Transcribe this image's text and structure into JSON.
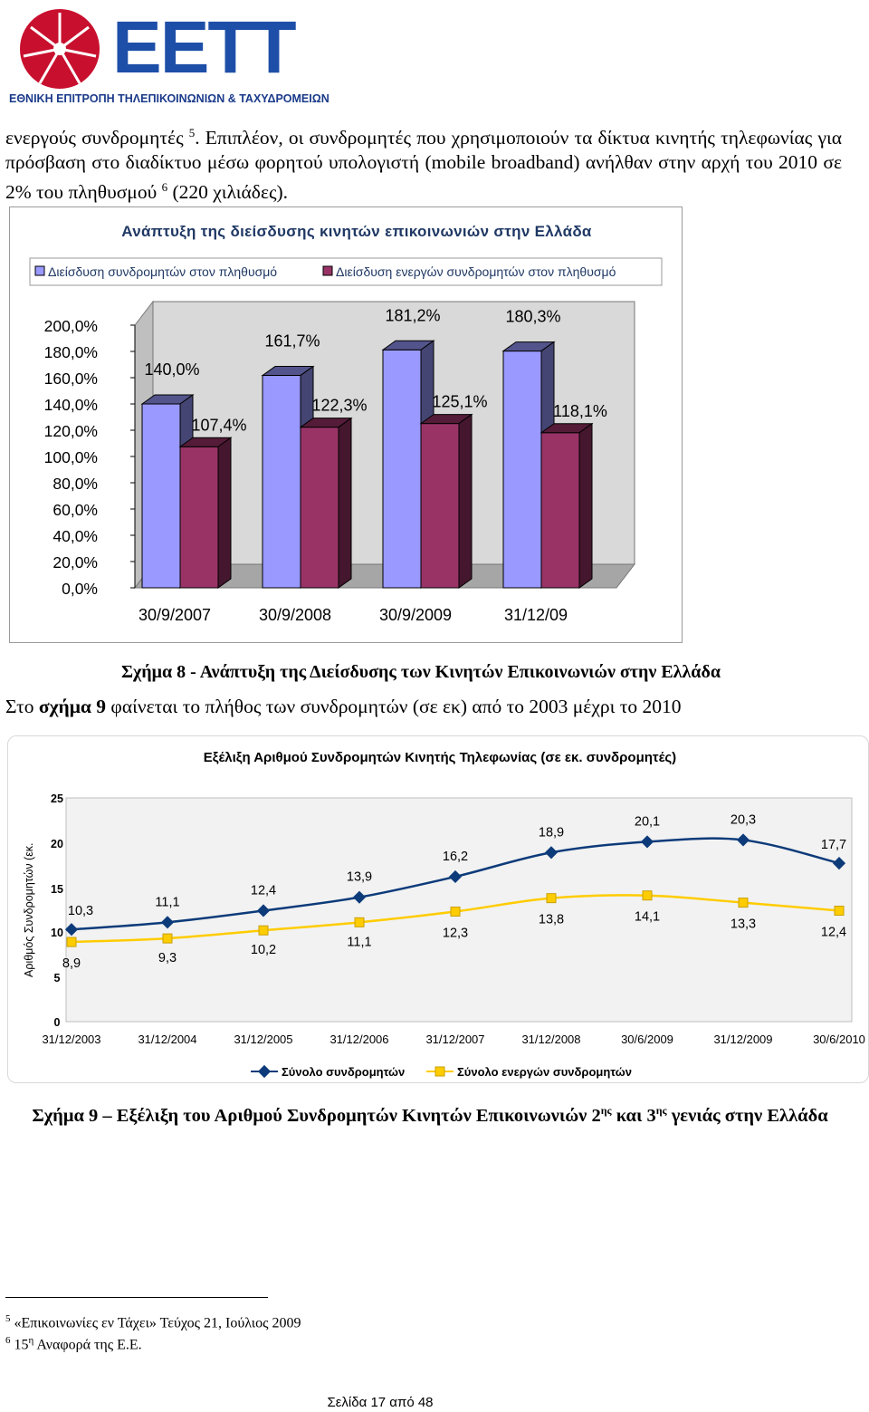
{
  "header": {
    "logo_text": "ΕΕΤΤ",
    "org_name": "ΕΘΝΙΚΗ ΕΠΙΤΡΟΠΗ ΤΗΛΕΠΙΚΟΙΝΩΝΙΩΝ & ΤΑΧΥΔΡΟΜΕΙΩΝ",
    "brand_red": "#c8102e",
    "brand_blue": "#1e4fa8"
  },
  "intro": {
    "text_a": "ενεργούς συνδρομητές ",
    "fn_ref_a": "5",
    "text_b": ". Επιπλέον, οι συνδρομητές που χρησιμοποιούν τα δίκτυα κινητής τηλεφωνίας για πρόσβαση στο διαδίκτυο μέσω φορητού υπολογιστή (mobile broadband) ανήλθαν στην αρχή του 2010 σε 2% του πληθυσμού ",
    "fn_ref_b": "6",
    "text_c": " (220 χιλιάδες)."
  },
  "chart_data": [
    {
      "type": "bar",
      "title": "Ανάπτυξη της διείσδυσης κινητών επικοινωνιών στην Ελλάδα",
      "categories": [
        "30/9/2007",
        "30/9/2008",
        "30/9/2009",
        "31/12/09"
      ],
      "series": [
        {
          "name": "Διείσδυση συνδρομητών στον πληθυσμό",
          "values": [
            140.0,
            161.7,
            181.2,
            180.3
          ],
          "labels": [
            "140,0%",
            "161,7%",
            "181,2%",
            "180,3%"
          ],
          "color": "#9999ff"
        },
        {
          "name": "Διείσδυση ενεργών συνδρομητών στον πληθυσμό",
          "values": [
            107.4,
            122.3,
            125.1,
            118.1
          ],
          "labels": [
            "107,4%",
            "122,3%",
            "125,1%",
            "118,1%"
          ],
          "color": "#993366"
        }
      ],
      "yticks": [
        "0,0%",
        "20,0%",
        "40,0%",
        "60,0%",
        "80,0%",
        "100,0%",
        "120,0%",
        "140,0%",
        "160,0%",
        "180,0%",
        "200,0%"
      ],
      "ylim": [
        0,
        200
      ],
      "legend": "top",
      "style": "3d-column"
    },
    {
      "type": "line",
      "title": "Εξέλιξη Αριθμού Συνδρομητών Κινητής Τηλεφωνίας (σε εκ. συνδρομητές)",
      "ylabel": "Αριθμός Συνδρομητών (εκ.",
      "categories": [
        "31/12/2003",
        "31/12/2004",
        "31/12/2005",
        "31/12/2006",
        "31/12/2007",
        "31/12/2008",
        "30/6/2009",
        "31/12/2009",
        "30/6/2010"
      ],
      "series": [
        {
          "name": "Σύνολο συνδρομητών",
          "values": [
            10.3,
            11.1,
            12.4,
            13.9,
            16.2,
            18.9,
            20.1,
            20.3,
            17.7
          ],
          "labels": [
            "10,3",
            "11,1",
            "12,4",
            "13,9",
            "16,2",
            "18,9",
            "20,1",
            "20,3",
            "17,7"
          ],
          "color": "#0d3b7a",
          "marker": "diamond"
        },
        {
          "name": "Σύνολο ενεργών συνδρομητών",
          "values": [
            8.9,
            9.3,
            10.2,
            11.1,
            12.3,
            13.8,
            14.1,
            13.3,
            12.4
          ],
          "labels": [
            "8,9",
            "9,3",
            "10,2",
            "11,1",
            "12,3",
            "13,8",
            "14,1",
            "13,3",
            "12,4"
          ],
          "color": "#ffcc00",
          "marker": "square"
        }
      ],
      "yticks": [
        "0",
        "5",
        "10",
        "15",
        "20",
        "25"
      ],
      "ylim": [
        0,
        25
      ],
      "legend": "bottom"
    }
  ],
  "caption1": "Σχήμα 8 - Ανάπτυξη της Διείσδυσης των Κινητών Επικοινωνιών στην Ελλάδα",
  "line2": {
    "a": "Στο ",
    "b": "σχήμα 9",
    "c": " φαίνεται το πλήθος των συνδρομητών (σε εκ) από το 2003 μέχρι το 2010"
  },
  "caption2": {
    "a": "Σχήμα 9 – Εξέλιξη του Αριθμού Συνδρομητών Κινητών Επικοινωνιών 2",
    "sup1": "ης",
    "b": " και 3",
    "sup2": "ης",
    "c": " γενιάς στην Ελλάδα"
  },
  "footnotes": [
    {
      "num": "5",
      "text": "«Επικοινωνίες εν Τάχει» Τεύχος 21, Ιούλιος 2009"
    },
    {
      "num": "6",
      "text_a": "15",
      "sup": "η",
      "text_b": " Αναφορά της Ε.Ε."
    }
  ],
  "page_footer": "Σελίδα 17 από 48"
}
